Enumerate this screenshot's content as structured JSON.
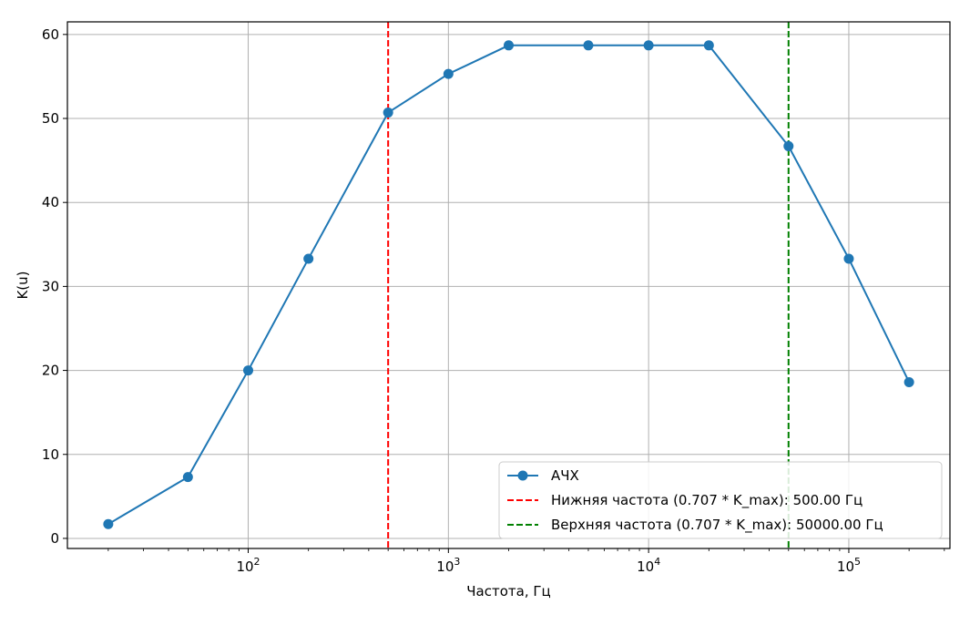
{
  "chart_data": {
    "type": "line",
    "title": "",
    "xlabel": "Частота, Гц",
    "ylabel": "K(u)",
    "xscale": "log",
    "xlim": [
      12.5,
      320000
    ],
    "ylim": [
      -1.2,
      61.5
    ],
    "grid": true,
    "legend_position": "lower right",
    "x_tick_labels": [
      {
        "base": "10",
        "exp": "2",
        "value": 100
      },
      {
        "base": "10",
        "exp": "3",
        "value": 1000
      },
      {
        "base": "10",
        "exp": "4",
        "value": 10000
      },
      {
        "base": "10",
        "exp": "5",
        "value": 100000
      }
    ],
    "y_ticks": [
      0,
      10,
      20,
      30,
      40,
      50,
      60
    ],
    "series": [
      {
        "name": "АЧХ",
        "color": "#1f77b4",
        "marker": "circle",
        "x": [
          20,
          50,
          100,
          200,
          500,
          1000,
          2000,
          5000,
          10000,
          20000,
          50000,
          100000,
          200000
        ],
        "y": [
          1.7,
          7.3,
          20.0,
          33.3,
          50.7,
          55.3,
          58.7,
          58.7,
          58.7,
          58.7,
          46.7,
          33.3,
          18.6
        ]
      }
    ],
    "vlines": [
      {
        "name": "Нижняя частота (0.707 * K_max): 500.00 Гц",
        "x": 500,
        "color": "#ff0000",
        "style": "dashed"
      },
      {
        "name": "Верхняя частота (0.707 * K_max): 50000.00 Гц",
        "x": 50000,
        "color": "#008000",
        "style": "dashed"
      }
    ]
  }
}
